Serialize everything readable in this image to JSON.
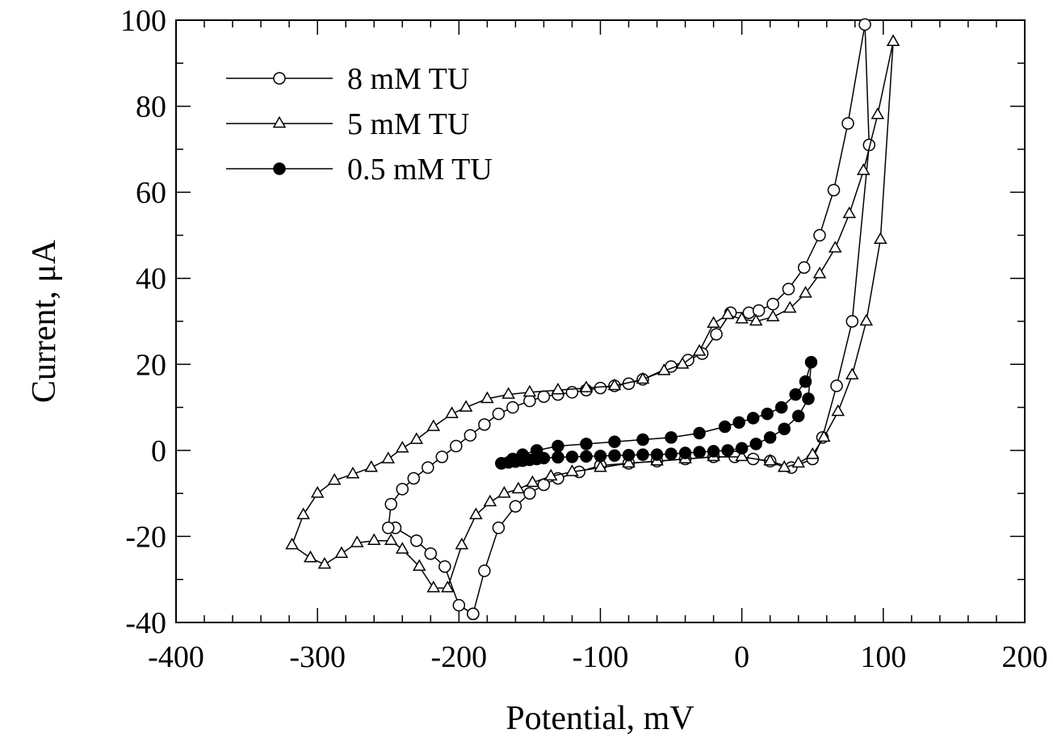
{
  "chart_data": {
    "type": "scatter",
    "title": "",
    "xlabel": "Potential, mV",
    "ylabel": "Current, μA",
    "xlim": [
      -400,
      200
    ],
    "ylim": [
      -40,
      100
    ],
    "x_ticks": [
      -400,
      -300,
      -200,
      -100,
      0,
      100,
      200
    ],
    "y_ticks": [
      -40,
      -20,
      0,
      20,
      40,
      60,
      80,
      100
    ],
    "x_tick_labels": [
      "-400",
      "-300",
      "-200",
      "-100",
      "0",
      "100",
      "200"
    ],
    "y_tick_labels": [
      "-40",
      "-20",
      "0",
      "20",
      "40",
      "60",
      "80",
      "100"
    ],
    "grid": false,
    "legend_position": "top-left",
    "series": [
      {
        "name": "8 mM TU",
        "marker": "open-circle",
        "color": "#000000",
        "points": [
          [
            -190,
            -38
          ],
          [
            -200,
            -36
          ],
          [
            -210,
            -27
          ],
          [
            -220,
            -24
          ],
          [
            -230,
            -21
          ],
          [
            -245,
            -18
          ],
          [
            -250,
            -18
          ],
          [
            -248,
            -12.5
          ],
          [
            -240,
            -9
          ],
          [
            -232,
            -6.5
          ],
          [
            -222,
            -4
          ],
          [
            -212,
            -1.5
          ],
          [
            -202,
            1
          ],
          [
            -192,
            3.5
          ],
          [
            -182,
            6
          ],
          [
            -172,
            8.5
          ],
          [
            -162,
            10
          ],
          [
            -150,
            11.5
          ],
          [
            -140,
            12.5
          ],
          [
            -130,
            13
          ],
          [
            -120,
            13.5
          ],
          [
            -110,
            14
          ],
          [
            -100,
            14.5
          ],
          [
            -90,
            15
          ],
          [
            -80,
            15.5
          ],
          [
            -70,
            16.5
          ],
          [
            -50,
            19.5
          ],
          [
            -38,
            21
          ],
          [
            -28,
            22.5
          ],
          [
            -18,
            27
          ],
          [
            -8,
            32
          ],
          [
            5,
            32
          ],
          [
            12,
            32.5
          ],
          [
            22,
            34
          ],
          [
            33,
            37.5
          ],
          [
            44,
            42.5
          ],
          [
            55,
            50
          ],
          [
            65,
            60.5
          ],
          [
            75,
            76
          ],
          [
            87,
            99
          ],
          [
            90,
            71
          ],
          [
            78,
            30
          ],
          [
            67,
            15
          ],
          [
            57,
            3
          ],
          [
            50,
            -2
          ],
          [
            35,
            -4
          ],
          [
            20,
            -2.5
          ],
          [
            8,
            -2
          ],
          [
            -5,
            -1.5
          ],
          [
            -20,
            -1.5
          ],
          [
            -40,
            -2
          ],
          [
            -60,
            -2.5
          ],
          [
            -80,
            -3
          ],
          [
            -100,
            -3.5
          ],
          [
            -115,
            -5
          ],
          [
            -130,
            -6.5
          ],
          [
            -140,
            -8
          ],
          [
            -150,
            -10
          ],
          [
            -160,
            -13
          ],
          [
            -172,
            -18
          ],
          [
            -182,
            -28
          ],
          [
            -190,
            -38
          ]
        ]
      },
      {
        "name": "5 mM TU",
        "marker": "open-triangle",
        "color": "#000000",
        "points": [
          [
            -305,
            -25
          ],
          [
            -295,
            -26.5
          ],
          [
            -283,
            -24
          ],
          [
            -272,
            -21.5
          ],
          [
            -260,
            -21
          ],
          [
            -248,
            -21
          ],
          [
            -240,
            -23
          ],
          [
            -228,
            -27
          ],
          [
            -218,
            -32
          ],
          [
            -208,
            -32
          ],
          [
            -198,
            -22
          ],
          [
            -188,
            -15
          ],
          [
            -178,
            -12
          ],
          [
            -168,
            -10
          ],
          [
            -158,
            -9
          ],
          [
            -148,
            -7.5
          ],
          [
            -135,
            -6
          ],
          [
            -120,
            -5
          ],
          [
            -100,
            -4
          ],
          [
            -80,
            -3
          ],
          [
            -60,
            -2.5
          ],
          [
            -40,
            -2
          ],
          [
            -20,
            -1.5
          ],
          [
            0,
            -1.5
          ],
          [
            20,
            -2.5
          ],
          [
            30,
            -4
          ],
          [
            40,
            -3
          ],
          [
            50,
            -1
          ],
          [
            58,
            3
          ],
          [
            68,
            9
          ],
          [
            78,
            17.5
          ],
          [
            88,
            30
          ],
          [
            98,
            49
          ],
          [
            107,
            95
          ],
          [
            96,
            78
          ],
          [
            86,
            65
          ],
          [
            76,
            55
          ],
          [
            66,
            47
          ],
          [
            55,
            41
          ],
          [
            45,
            36.5
          ],
          [
            34,
            33
          ],
          [
            22,
            31
          ],
          [
            10,
            30
          ],
          [
            0,
            30.5
          ],
          [
            -10,
            31.5
          ],
          [
            -20,
            29.5
          ],
          [
            -30,
            23
          ],
          [
            -42,
            20
          ],
          [
            -55,
            18.5
          ],
          [
            -70,
            16.5
          ],
          [
            -90,
            15
          ],
          [
            -110,
            14.5
          ],
          [
            -130,
            14
          ],
          [
            -150,
            13.5
          ],
          [
            -165,
            13
          ],
          [
            -180,
            12
          ],
          [
            -195,
            10
          ],
          [
            -205,
            8.5
          ],
          [
            -218,
            5.5
          ],
          [
            -230,
            2.5
          ],
          [
            -240,
            0.5
          ],
          [
            -250,
            -2
          ],
          [
            -262,
            -4
          ],
          [
            -275,
            -5.5
          ],
          [
            -288,
            -7
          ],
          [
            -300,
            -10
          ],
          [
            -310,
            -15
          ],
          [
            -318,
            -22
          ],
          [
            -305,
            -25
          ]
        ]
      },
      {
        "name": "0.5 mM TU",
        "marker": "filled-circle",
        "color": "#000000",
        "points": [
          [
            -170,
            -3
          ],
          [
            -165,
            -2.8
          ],
          [
            -160,
            -2.6
          ],
          [
            -155,
            -2.4
          ],
          [
            -150,
            -2.2
          ],
          [
            -145,
            -2
          ],
          [
            -140,
            -1.8
          ],
          [
            -130,
            -1.6
          ],
          [
            -120,
            -1.5
          ],
          [
            -110,
            -1.4
          ],
          [
            -100,
            -1.3
          ],
          [
            -90,
            -1.2
          ],
          [
            -80,
            -1.1
          ],
          [
            -70,
            -1
          ],
          [
            -60,
            -1
          ],
          [
            -50,
            -0.8
          ],
          [
            -40,
            -0.6
          ],
          [
            -30,
            -0.4
          ],
          [
            -20,
            -0.2
          ],
          [
            -10,
            0
          ],
          [
            0,
            0.5
          ],
          [
            10,
            1.5
          ],
          [
            20,
            3
          ],
          [
            30,
            5
          ],
          [
            40,
            8
          ],
          [
            47,
            12
          ],
          [
            49,
            20.5
          ],
          [
            45,
            16
          ],
          [
            38,
            13
          ],
          [
            28,
            10
          ],
          [
            18,
            8.5
          ],
          [
            8,
            7.5
          ],
          [
            -2,
            6.5
          ],
          [
            -12,
            5.5
          ],
          [
            -30,
            4
          ],
          [
            -50,
            3
          ],
          [
            -70,
            2.5
          ],
          [
            -90,
            2
          ],
          [
            -110,
            1.5
          ],
          [
            -130,
            1
          ],
          [
            -145,
            0
          ],
          [
            -155,
            -1
          ],
          [
            -162,
            -2
          ],
          [
            -170,
            -3
          ]
        ]
      }
    ]
  }
}
